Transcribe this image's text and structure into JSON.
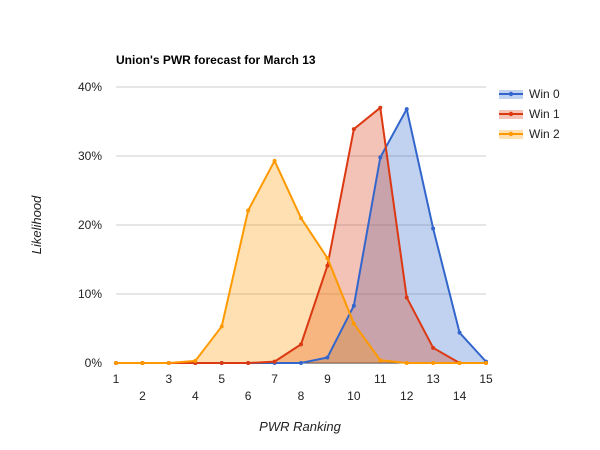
{
  "chart_data": {
    "type": "area",
    "title": "Union's PWR forecast for March 13",
    "xlabel": "PWR Ranking",
    "ylabel": "Likelihood",
    "x": [
      1,
      2,
      3,
      4,
      5,
      6,
      7,
      8,
      9,
      10,
      11,
      12,
      13,
      14,
      15
    ],
    "x_tick_labels": [
      "1",
      "2",
      "3",
      "4",
      "5",
      "6",
      "7",
      "8",
      "9",
      "10",
      "11",
      "12",
      "13",
      "14",
      "15"
    ],
    "ylim": [
      0,
      40
    ],
    "y_ticks": [
      0,
      10,
      20,
      30,
      40
    ],
    "y_tick_labels": [
      "0%",
      "10%",
      "20%",
      "30%",
      "40%"
    ],
    "grid": true,
    "legend_position": "right",
    "series": [
      {
        "name": "Win 0",
        "color": "#3366cc",
        "values": [
          0,
          0,
          0,
          0,
          0,
          0,
          0,
          0,
          0.8,
          8.3,
          29.8,
          36.8,
          19.5,
          4.4,
          0.2
        ]
      },
      {
        "name": "Win 1",
        "color": "#dc3912",
        "values": [
          0,
          0,
          0,
          0,
          0,
          0,
          0.2,
          2.7,
          14.1,
          33.9,
          37.0,
          9.5,
          2.2,
          0,
          0
        ]
      },
      {
        "name": "Win 2",
        "color": "#ff9900",
        "values": [
          0,
          0,
          0,
          0.3,
          5.3,
          22.1,
          29.3,
          21.0,
          15.2,
          5.7,
          0.4,
          0,
          0,
          0,
          0
        ]
      }
    ]
  }
}
